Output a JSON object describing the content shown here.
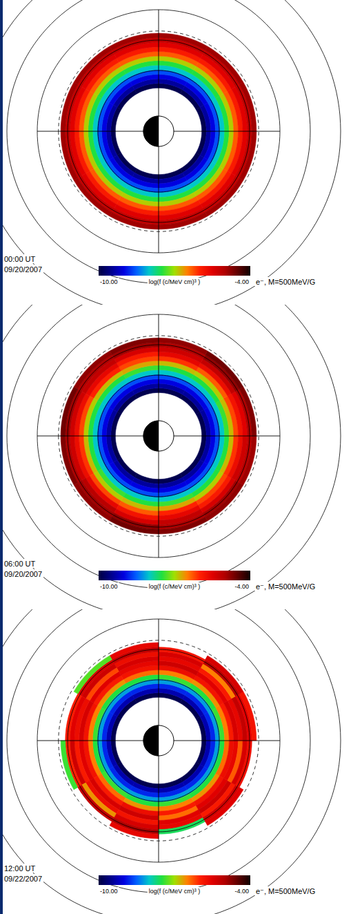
{
  "chart_data": [
    {
      "type": "heatmap",
      "title": "00:00 UT",
      "subtitle": "09/20/2007",
      "annotation": "e⁻, M=500MeV/G",
      "rlim": [
        0,
        14
      ],
      "rticks": [
        4,
        6,
        8,
        10,
        12
      ],
      "reference_circles": [
        6.6
      ],
      "grid": true,
      "tick_labels": false,
      "r_bins": [
        2.85,
        3.15,
        3.45,
        3.75,
        4.05,
        4.35,
        4.65,
        4.95,
        5.25,
        5.55,
        5.85,
        6.15,
        6.45
      ],
      "mlt_bins": [
        0,
        2,
        4,
        6,
        8,
        10,
        12,
        14,
        16,
        18,
        20,
        22,
        24
      ],
      "cells": [
        [
          -9.9,
          -9.4,
          -9.0,
          -8.6,
          -8.0,
          -7.5,
          -6.9,
          -6.3,
          -5.9,
          -5.5,
          -5.2,
          -4.9
        ],
        [
          -9.9,
          -9.4,
          -9.0,
          -8.6,
          -8.0,
          -7.5,
          -6.9,
          -6.3,
          -5.9,
          -5.5,
          -5.2,
          -4.9
        ],
        [
          -9.9,
          -9.4,
          -9.0,
          -8.6,
          -8.0,
          -7.5,
          -6.9,
          -6.3,
          -5.9,
          -5.5,
          -5.2,
          -4.9
        ],
        [
          -9.9,
          -9.4,
          -9.0,
          -8.6,
          -8.0,
          -7.5,
          -6.9,
          -6.3,
          -5.9,
          -5.5,
          -5.2,
          -4.9
        ],
        [
          -9.9,
          -9.4,
          -9.0,
          -8.6,
          -8.0,
          -7.5,
          -6.9,
          -6.3,
          -5.9,
          -5.5,
          -5.2,
          -4.9
        ],
        [
          -9.9,
          -9.4,
          -9.0,
          -8.6,
          -8.0,
          -7.5,
          -6.9,
          -6.3,
          -5.9,
          -5.5,
          -5.2,
          -4.9
        ],
        [
          -9.9,
          -9.4,
          -9.0,
          -8.6,
          -8.0,
          -7.5,
          -6.9,
          -6.3,
          -5.9,
          -5.5,
          -5.2,
          -4.9
        ],
        [
          -9.9,
          -9.4,
          -9.0,
          -8.6,
          -8.0,
          -7.5,
          -6.9,
          -6.3,
          -5.9,
          -5.5,
          -5.2,
          -4.9
        ],
        [
          -9.9,
          -9.4,
          -9.0,
          -8.6,
          -8.0,
          -7.5,
          -6.9,
          -6.3,
          -5.9,
          -5.5,
          -5.2,
          -4.9
        ],
        [
          -9.9,
          -9.4,
          -9.0,
          -8.6,
          -8.0,
          -7.5,
          -6.9,
          -6.3,
          -5.9,
          -5.5,
          -5.2,
          -4.9
        ],
        [
          -9.9,
          -9.4,
          -9.0,
          -8.6,
          -8.0,
          -7.5,
          -6.9,
          -6.3,
          -5.9,
          -5.5,
          -5.2,
          -4.9
        ],
        [
          -9.9,
          -9.4,
          -9.0,
          -8.6,
          -8.0,
          -7.5,
          -6.9,
          -6.3,
          -5.9,
          -5.5,
          -5.2,
          -4.9
        ]
      ],
      "colorbar": {
        "range": [
          -10,
          -4
        ],
        "ticks": [
          {
            "value": -10,
            "label": "-10.00"
          },
          {
            "value": -4,
            "label": "-4.00"
          }
        ],
        "label": "log(f (c/MeV cm)³ )",
        "colors": [
          "#000040",
          "#00008c",
          "#0000e0",
          "#0060ff",
          "#00c8c8",
          "#20e040",
          "#a0e000",
          "#ff8000",
          "#ff2000",
          "#e00000",
          "#b00000",
          "#600000",
          "#100000"
        ]
      }
    },
    {
      "type": "heatmap",
      "title": "06:00 UT",
      "subtitle": "09/20/2007",
      "annotation": "e⁻, M=500MeV/G",
      "rlim": [
        0,
        14
      ],
      "rticks": [
        4,
        6,
        8,
        10,
        12
      ],
      "reference_circles": [
        6.6
      ],
      "grid": true,
      "tick_labels": false,
      "r_bins": [
        2.85,
        3.15,
        3.45,
        3.75,
        4.05,
        4.35,
        4.65,
        4.95,
        5.25,
        5.55,
        5.85,
        6.15,
        6.45
      ],
      "mlt_bins": [
        0,
        2,
        4,
        6,
        8,
        10,
        12,
        14,
        16,
        18,
        20,
        22,
        24
      ],
      "cells": [
        [
          -9.9,
          -9.4,
          -9.0,
          -8.6,
          -8.0,
          -7.5,
          -6.8,
          -6.1,
          -5.7,
          -5.3,
          -5.0,
          -4.7
        ],
        [
          -9.9,
          -9.4,
          -9.0,
          -8.6,
          -8.0,
          -7.4,
          -6.9,
          -6.2,
          -5.6,
          -5.1,
          -4.9,
          -4.8
        ],
        [
          -9.9,
          -9.4,
          -9.0,
          -8.6,
          -8.0,
          -7.5,
          -6.8,
          -6.3,
          -5.8,
          -5.4,
          -4.8,
          -4.6
        ],
        [
          -9.9,
          -9.4,
          -9.0,
          -8.6,
          -8.0,
          -7.4,
          -6.7,
          -6.0,
          -5.6,
          -5.2,
          -5.0,
          -4.7
        ],
        [
          -9.9,
          -9.4,
          -9.0,
          -8.6,
          -8.0,
          -7.5,
          -6.9,
          -6.2,
          -5.9,
          -5.4,
          -4.9,
          -4.8
        ],
        [
          -9.9,
          -9.4,
          -9.0,
          -8.6,
          -8.0,
          -7.5,
          -6.8,
          -6.1,
          -5.7,
          -5.3,
          -5.1,
          -4.9
        ],
        [
          -9.9,
          -9.4,
          -9.0,
          -8.6,
          -8.0,
          -7.4,
          -6.8,
          -6.2,
          -5.8,
          -5.5,
          -5.0,
          -4.7
        ],
        [
          -9.9,
          -9.4,
          -9.0,
          -8.6,
          -8.0,
          -7.5,
          -6.9,
          -6.3,
          -5.7,
          -5.2,
          -4.8,
          -4.6
        ],
        [
          -9.9,
          -9.4,
          -9.0,
          -8.6,
          -8.0,
          -7.5,
          -6.8,
          -6.1,
          -5.6,
          -5.3,
          -5.0,
          -4.8
        ],
        [
          -9.9,
          -9.4,
          -9.0,
          -8.6,
          -8.0,
          -7.4,
          -6.7,
          -6.2,
          -5.9,
          -5.4,
          -4.9,
          -4.7
        ],
        [
          -9.9,
          -9.4,
          -9.0,
          -8.6,
          -8.0,
          -7.5,
          -6.8,
          -6.0,
          -5.6,
          -5.2,
          -5.0,
          -4.8
        ],
        [
          -9.9,
          -9.4,
          -9.0,
          -8.6,
          -8.0,
          -7.5,
          -6.9,
          -6.2,
          -5.7,
          -5.3,
          -4.9,
          -4.6
        ]
      ],
      "colorbar": {
        "range": [
          -10,
          -4
        ],
        "ticks": [
          {
            "value": -10,
            "label": "-10.00"
          },
          {
            "value": -4,
            "label": "-4.00"
          }
        ],
        "label": "log(f (c/MeV cm)³ )",
        "colors": [
          "#000040",
          "#00008c",
          "#0000e0",
          "#0060ff",
          "#00c8c8",
          "#20e040",
          "#a0e000",
          "#ff8000",
          "#ff2000",
          "#e00000",
          "#b00000",
          "#600000",
          "#100000"
        ]
      }
    },
    {
      "type": "heatmap",
      "title": "12:00 UT",
      "subtitle": "09/22/2007",
      "annotation": "e⁻, M=500MeV/G",
      "rlim": [
        0,
        14
      ],
      "rticks": [
        4,
        6,
        8,
        10,
        12
      ],
      "reference_circles": [
        6.6
      ],
      "grid": true,
      "tick_labels": false,
      "r_bins": [
        2.85,
        3.15,
        3.45,
        3.75,
        4.05,
        4.35,
        4.65,
        4.95,
        5.25,
        5.55,
        5.85,
        6.15,
        6.45
      ],
      "mlt_bins": [
        0,
        2,
        4,
        6,
        8,
        10,
        12,
        14,
        16,
        18,
        20,
        22,
        24
      ],
      "cells": [
        [
          -9.9,
          -9.3,
          -8.8,
          -8.2,
          -7.5,
          -6.5,
          -5.8,
          -5.5,
          -5.9,
          -5.3,
          -6.0,
          -7.4
        ],
        [
          -9.9,
          -9.3,
          -8.8,
          -8.2,
          -7.4,
          -6.4,
          -5.9,
          -5.4,
          -5.7,
          -6.6,
          -5.2,
          null
        ],
        [
          -9.9,
          -9.3,
          -8.8,
          -8.2,
          -7.5,
          -6.6,
          -5.7,
          -5.3,
          -5.8,
          -5.4,
          -5.0,
          -5.6
        ],
        [
          -9.9,
          -9.3,
          -8.8,
          -8.2,
          -7.4,
          -6.5,
          -5.9,
          -6.4,
          -5.5,
          -5.6,
          -7.6,
          null
        ],
        [
          -9.9,
          -9.3,
          -8.8,
          -8.2,
          -7.5,
          -6.6,
          -5.8,
          -5.5,
          -5.3,
          -5.9,
          -5.3,
          -5.5
        ],
        [
          -9.9,
          -9.3,
          -8.8,
          -8.2,
          -7.5,
          -6.4,
          -5.7,
          -5.6,
          -6.3,
          -5.4,
          -5.7,
          null
        ],
        [
          -9.9,
          -9.3,
          -8.8,
          -8.2,
          -7.4,
          -6.5,
          -5.9,
          -5.4,
          -5.6,
          -5.2,
          -5.5,
          -5.8
        ],
        [
          -9.9,
          -9.3,
          -8.8,
          -8.2,
          -7.5,
          -6.6,
          -5.8,
          -5.5,
          -5.9,
          -6.5,
          -5.1,
          -5.4
        ],
        [
          -9.9,
          -9.3,
          -8.8,
          -8.2,
          -7.4,
          -6.5,
          -5.7,
          -5.3,
          -5.6,
          -5.4,
          -5.8,
          null
        ],
        [
          -9.9,
          -9.3,
          -8.8,
          -8.2,
          -7.5,
          -6.4,
          -5.8,
          -5.6,
          -5.4,
          -5.7,
          -5.2,
          -5.6
        ],
        [
          -9.9,
          -9.3,
          -8.8,
          -8.2,
          -7.5,
          -6.6,
          -5.9,
          -5.5,
          -6.2,
          -5.3,
          -5.4,
          -7.3
        ],
        [
          -9.9,
          -9.3,
          -8.8,
          -8.2,
          -7.4,
          -6.5,
          -5.8,
          -5.4,
          -5.7,
          -5.5,
          -5.9,
          null
        ]
      ],
      "colorbar": {
        "range": [
          -10,
          -4
        ],
        "ticks": [
          {
            "value": -10,
            "label": "-10.00"
          },
          {
            "value": -4,
            "label": "-4.00"
          }
        ],
        "label": "log(f (c/MeV cm)³ )",
        "colors": [
          "#000040",
          "#00008c",
          "#0000e0",
          "#0060ff",
          "#00c8c8",
          "#20e040",
          "#a0e000",
          "#ff8000",
          "#ff2000",
          "#e00000",
          "#b00000",
          "#600000",
          "#100000"
        ]
      }
    }
  ]
}
